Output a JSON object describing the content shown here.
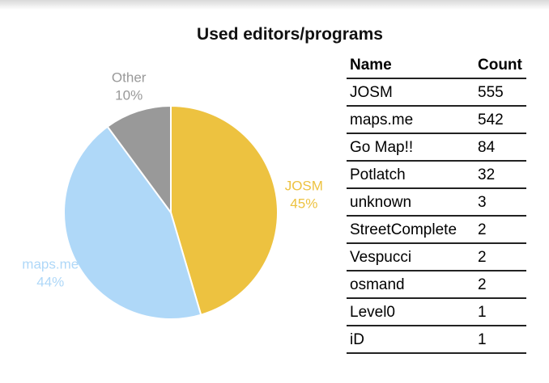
{
  "chart_data": {
    "type": "pie",
    "title": "Used editors/programs",
    "slices": [
      {
        "label": "JOSM",
        "value": 45,
        "display": "45%",
        "color": "#edc240"
      },
      {
        "label": "maps.me",
        "value": 44,
        "display": "44%",
        "color": "#afd8f8"
      },
      {
        "label": "Other",
        "value": 10,
        "display": "10%",
        "color": "#999999"
      }
    ]
  },
  "table": {
    "headers": {
      "name": "Name",
      "count": "Count"
    },
    "rows": [
      {
        "name": "JOSM",
        "count": "555"
      },
      {
        "name": "maps.me",
        "count": "542"
      },
      {
        "name": "Go Map!!",
        "count": "84"
      },
      {
        "name": "Potlatch",
        "count": "32"
      },
      {
        "name": "unknown",
        "count": "3"
      },
      {
        "name": "StreetComplete",
        "count": "2"
      },
      {
        "name": "Vespucci",
        "count": "2"
      },
      {
        "name": "osmand",
        "count": "2"
      },
      {
        "name": "Level0",
        "count": "1"
      },
      {
        "name": "iD",
        "count": "1"
      }
    ]
  }
}
